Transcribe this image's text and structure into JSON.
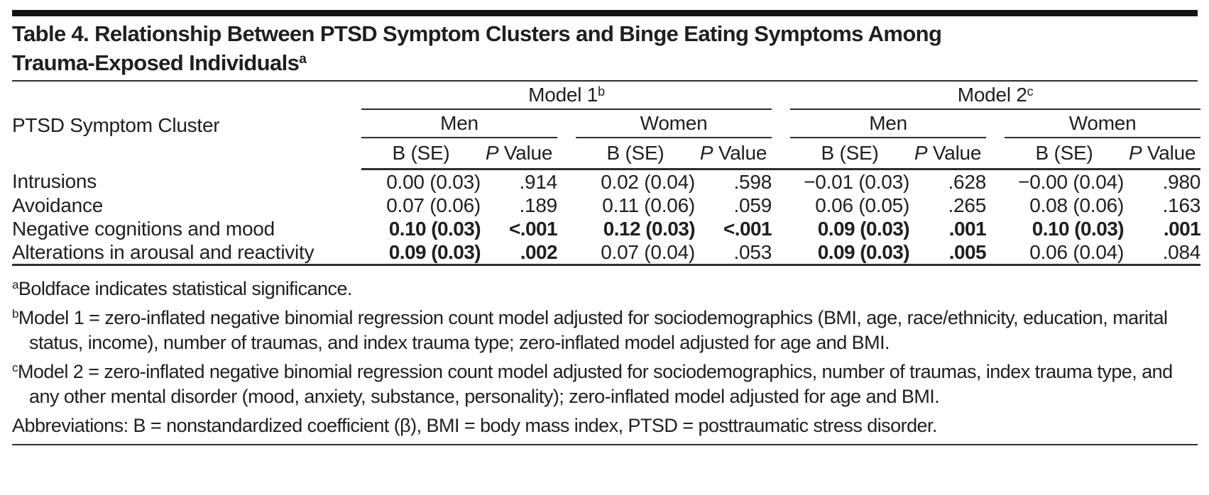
{
  "title": {
    "line1": "Table 4. Relationship Between PTSD Symptom Clusters and Binge Eating Symptoms Among",
    "line2": "Trauma-Exposed Individuals",
    "sup": "a"
  },
  "header": {
    "row_label": "PTSD Symptom Cluster",
    "models": [
      {
        "label": "Model 1",
        "sup": "b"
      },
      {
        "label": "Model 2",
        "sup": "c"
      }
    ],
    "genders": [
      "Men",
      "Women",
      "Men",
      "Women"
    ],
    "b_head": "B (SE)",
    "p_head": {
      "p": "P",
      "value": " Value"
    }
  },
  "rows": [
    {
      "label": "Intrusions",
      "cells": [
        {
          "v": "0.00 (0.03)",
          "bold": false
        },
        {
          "v": ".914",
          "bold": false
        },
        {
          "v": "0.02 (0.04)",
          "bold": false
        },
        {
          "v": ".598",
          "bold": false
        },
        {
          "v": "−0.01 (0.03)",
          "bold": false
        },
        {
          "v": ".628",
          "bold": false
        },
        {
          "v": "−0.00 (0.04)",
          "bold": false
        },
        {
          "v": ".980",
          "bold": false
        }
      ]
    },
    {
      "label": "Avoidance",
      "cells": [
        {
          "v": "0.07 (0.06)",
          "bold": false
        },
        {
          "v": ".189",
          "bold": false
        },
        {
          "v": "0.11 (0.06)",
          "bold": false
        },
        {
          "v": ".059",
          "bold": false
        },
        {
          "v": "0.06 (0.05)",
          "bold": false
        },
        {
          "v": ".265",
          "bold": false
        },
        {
          "v": "0.08 (0.06)",
          "bold": false
        },
        {
          "v": ".163",
          "bold": false
        }
      ]
    },
    {
      "label": "Negative cognitions and mood",
      "cells": [
        {
          "v": "0.10 (0.03)",
          "bold": true
        },
        {
          "v": "<.001",
          "bold": true
        },
        {
          "v": "0.12 (0.03)",
          "bold": true
        },
        {
          "v": "<.001",
          "bold": true
        },
        {
          "v": "0.09 (0.03)",
          "bold": true
        },
        {
          "v": ".001",
          "bold": true
        },
        {
          "v": "0.10 (0.03)",
          "bold": true
        },
        {
          "v": ".001",
          "bold": true
        }
      ]
    },
    {
      "label": "Alterations in arousal and reactivity",
      "cells": [
        {
          "v": "0.09 (0.03)",
          "bold": true
        },
        {
          "v": ".002",
          "bold": true
        },
        {
          "v": "0.07 (0.04)",
          "bold": false
        },
        {
          "v": ".053",
          "bold": false
        },
        {
          "v": "0.09 (0.03)",
          "bold": true
        },
        {
          "v": ".005",
          "bold": true
        },
        {
          "v": "0.06 (0.04)",
          "bold": false
        },
        {
          "v": ".084",
          "bold": false
        }
      ]
    }
  ],
  "footnotes": [
    {
      "marker": "a",
      "text": "Boldface indicates statistical significance."
    },
    {
      "marker": "b",
      "text": "Model 1 = zero-inflated negative binomial regression count model adjusted for sociodemographics (BMI, age, race/ethnicity, education, marital status, income), number of traumas, and index trauma type; zero-inflated model adjusted for age and BMI."
    },
    {
      "marker": "c",
      "text": "Model 2 = zero-inflated negative binomial regression count model adjusted for sociodemographics, number of traumas, index trauma type, and any other mental disorder (mood, anxiety, substance, personality); zero-inflated model adjusted for age and BMI."
    },
    {
      "marker": "",
      "text": "Abbreviations: B = nonstandardized coefficient (β), BMI = body mass index, PTSD = posttraumatic stress disorder."
    }
  ]
}
